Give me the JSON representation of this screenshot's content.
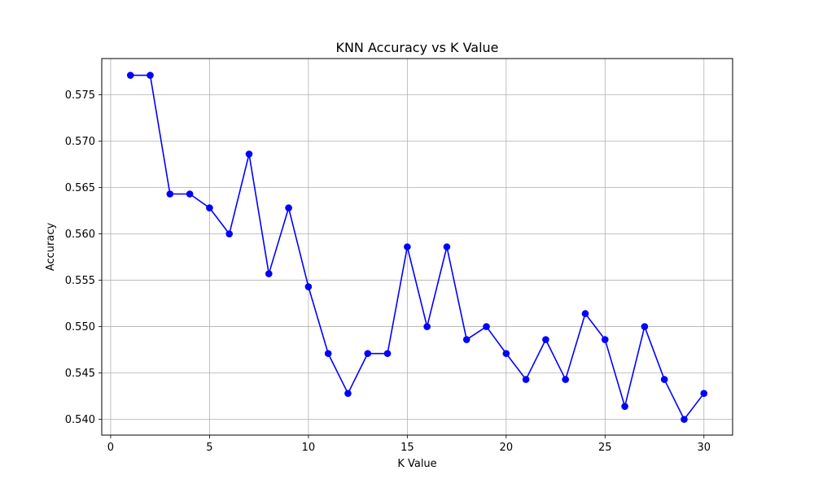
{
  "chart_data": {
    "type": "line",
    "title": "KNN Accuracy vs K Value",
    "xlabel": "K Value",
    "ylabel": "Accuracy",
    "xlim": [
      -0.45,
      31.45
    ],
    "ylim": [
      0.5383,
      0.5789
    ],
    "xticks": [
      0,
      5,
      10,
      15,
      20,
      25,
      30
    ],
    "xtick_labels": [
      "0",
      "5",
      "10",
      "15",
      "20",
      "25",
      "30"
    ],
    "yticks": [
      0.54,
      0.545,
      0.55,
      0.555,
      0.56,
      0.565,
      0.57,
      0.575
    ],
    "ytick_labels": [
      "0.540",
      "0.545",
      "0.550",
      "0.555",
      "0.560",
      "0.565",
      "0.570",
      "0.575"
    ],
    "grid": true,
    "marker": "circle",
    "series": [
      {
        "color": "#0000ff",
        "x": [
          1,
          2,
          3,
          4,
          5,
          6,
          7,
          8,
          9,
          10,
          11,
          12,
          13,
          14,
          15,
          16,
          17,
          18,
          19,
          20,
          21,
          22,
          23,
          24,
          25,
          26,
          27,
          28,
          29,
          30
        ],
        "y": [
          0.5771,
          0.5771,
          0.5643,
          0.5643,
          0.5628,
          0.56,
          0.5686,
          0.5557,
          0.5628,
          0.5543,
          0.5471,
          0.5428,
          0.5471,
          0.5471,
          0.5586,
          0.55,
          0.5586,
          0.5486,
          0.55,
          0.5471,
          0.5443,
          0.5486,
          0.5443,
          0.5514,
          0.5486,
          0.5414,
          0.55,
          0.5443,
          0.54,
          0.5428
        ]
      }
    ]
  }
}
